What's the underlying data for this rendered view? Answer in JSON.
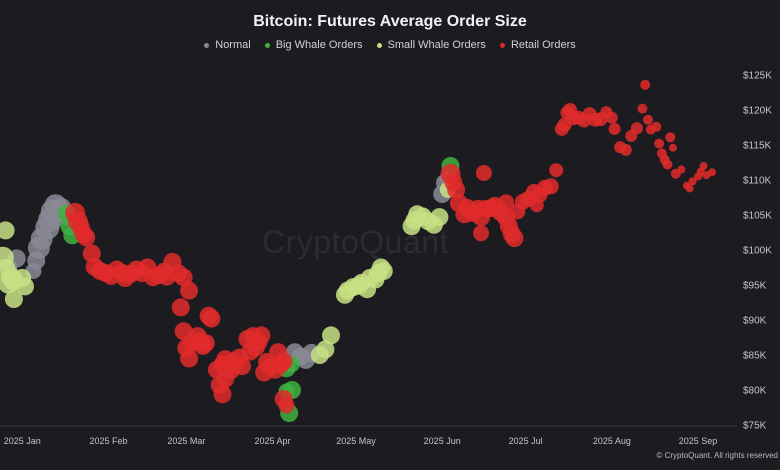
{
  "chart_data": {
    "type": "scatter",
    "title": "Bitcoin: Futures Average Order Size",
    "watermark": "CryptoQuant",
    "footer": "© CryptoQuant. All rights reserved",
    "x_ticks": [
      "2025 Jan",
      "2025 Feb",
      "2025 Mar",
      "2025 Apr",
      "2025 May",
      "2025 Jun",
      "2025 Jul",
      "2025 Aug",
      "2025 Sep"
    ],
    "y_ticks": [
      "$75K",
      "$80K",
      "$85K",
      "$90K",
      "$95K",
      "$100K",
      "$105K",
      "$110K",
      "$115K",
      "$120K",
      "$125K"
    ],
    "ylim": [
      75000,
      125000
    ],
    "xlim": [
      "2024-12-24",
      "2025-09-15"
    ],
    "grid": false,
    "legend_position": "top-center",
    "series": [
      {
        "name": "Normal",
        "color": "#8a8a96",
        "points": [
          [
            "2024-12-27",
            97500,
            9
          ],
          [
            "2024-12-30",
            98800,
            9
          ],
          [
            "2025-01-07",
            100300,
            11
          ],
          [
            "2025-01-08",
            101600,
            11
          ],
          [
            "2025-01-10",
            103200,
            12
          ],
          [
            "2025-01-11",
            104300,
            12
          ],
          [
            "2025-01-12",
            105500,
            12
          ],
          [
            "2025-01-13",
            106400,
            11
          ],
          [
            "2025-01-15",
            106000,
            10
          ],
          [
            "2025-01-17",
            105000,
            10
          ],
          [
            "2025-01-06",
            98500,
            9
          ],
          [
            "2025-01-05",
            97000,
            8
          ],
          [
            "2025-04-09",
            85400,
            9
          ],
          [
            "2025-04-11",
            84800,
            9
          ],
          [
            "2025-04-13",
            84300,
            9
          ],
          [
            "2025-04-15",
            85300,
            9
          ],
          [
            "2025-06-01",
            108000,
            9
          ],
          [
            "2025-06-02",
            109600,
            9
          ],
          [
            "2025-06-03",
            110200,
            8
          ]
        ]
      },
      {
        "name": "Big Whale Orders",
        "color": "#3fb23f",
        "points": [
          [
            "2025-01-17",
            105200,
            9
          ],
          [
            "2025-01-19",
            102100,
            9
          ],
          [
            "2025-01-18",
            103400,
            9
          ],
          [
            "2025-04-06",
            83100,
            9
          ],
          [
            "2025-04-06",
            79800,
            8
          ],
          [
            "2025-04-08",
            80000,
            9
          ],
          [
            "2025-04-08",
            83700,
            8
          ],
          [
            "2025-04-07",
            76700,
            9
          ],
          [
            "2025-06-04",
            112000,
            9
          ]
        ]
      },
      {
        "name": "Small Whale Orders",
        "color": "#c7e085",
        "points": [
          [
            "2024-12-25",
            98900,
            11
          ],
          [
            "2024-12-26",
            97300,
            10
          ],
          [
            "2024-12-27",
            95200,
            10
          ],
          [
            "2024-12-28",
            96100,
            10
          ],
          [
            "2024-12-29",
            95600,
            10
          ],
          [
            "2024-12-26",
            102800,
            9
          ],
          [
            "2024-12-29",
            93000,
            9
          ],
          [
            "2025-01-01",
            96000,
            9
          ],
          [
            "2025-01-02",
            94800,
            9
          ],
          [
            "2025-04-18",
            85000,
            9
          ],
          [
            "2025-04-20",
            85800,
            9
          ],
          [
            "2025-04-22",
            87800,
            9
          ],
          [
            "2025-04-27",
            93600,
            9
          ],
          [
            "2025-04-28",
            94200,
            9
          ],
          [
            "2025-04-30",
            94700,
            9
          ],
          [
            "2025-05-02",
            94900,
            9
          ],
          [
            "2025-05-03",
            95300,
            9
          ],
          [
            "2025-05-05",
            94400,
            9
          ],
          [
            "2025-05-06",
            96000,
            9
          ],
          [
            "2025-05-08",
            95800,
            9
          ],
          [
            "2025-05-09",
            96700,
            9
          ],
          [
            "2025-05-10",
            97500,
            9
          ],
          [
            "2025-05-11",
            97000,
            9
          ],
          [
            "2025-05-21",
            103400,
            9
          ],
          [
            "2025-05-22",
            104200,
            9
          ],
          [
            "2025-05-23",
            105100,
            9
          ],
          [
            "2025-05-25",
            104800,
            9
          ],
          [
            "2025-05-27",
            104100,
            9
          ],
          [
            "2025-05-29",
            103600,
            9
          ],
          [
            "2025-05-31",
            104700,
            9
          ],
          [
            "2025-06-03",
            108600,
            8
          ]
        ]
      },
      {
        "name": "Retail Orders",
        "color": "#e22a2a",
        "points": [
          [
            "2025-01-20",
            105300,
            10
          ],
          [
            "2025-01-21",
            104100,
            10
          ],
          [
            "2025-01-22",
            103300,
            9
          ],
          [
            "2025-01-23",
            102300,
            9
          ],
          [
            "2025-01-24",
            101800,
            9
          ],
          [
            "2025-01-26",
            99500,
            9
          ],
          [
            "2025-01-27",
            97600,
            9
          ],
          [
            "2025-01-29",
            97000,
            9
          ],
          [
            "2025-01-31",
            96700,
            9
          ],
          [
            "2025-02-02",
            96300,
            9
          ],
          [
            "2025-02-04",
            97200,
            9
          ],
          [
            "2025-02-06",
            96700,
            9
          ],
          [
            "2025-02-07",
            96000,
            9
          ],
          [
            "2025-02-09",
            96600,
            9
          ],
          [
            "2025-02-11",
            97200,
            9
          ],
          [
            "2025-02-13",
            96700,
            9
          ],
          [
            "2025-02-15",
            97500,
            9
          ],
          [
            "2025-02-17",
            96100,
            9
          ],
          [
            "2025-02-19",
            96400,
            9
          ],
          [
            "2025-02-21",
            96900,
            9
          ],
          [
            "2025-02-22",
            96200,
            9
          ],
          [
            "2025-02-24",
            98300,
            9
          ],
          [
            "2025-02-26",
            96700,
            9
          ],
          [
            "2025-02-28",
            96100,
            9
          ],
          [
            "2025-03-02",
            94200,
            9
          ],
          [
            "2025-02-27",
            91800,
            9
          ],
          [
            "2025-02-28",
            88400,
            9
          ],
          [
            "2025-03-01",
            86000,
            9
          ],
          [
            "2025-03-02",
            84500,
            9
          ],
          [
            "2025-03-03",
            86800,
            9
          ],
          [
            "2025-03-05",
            87700,
            9
          ],
          [
            "2025-03-06",
            86900,
            9
          ],
          [
            "2025-03-07",
            86300,
            9
          ],
          [
            "2025-03-08",
            86700,
            9
          ],
          [
            "2025-03-09",
            90600,
            9
          ],
          [
            "2025-03-10",
            90200,
            9
          ],
          [
            "2025-03-12",
            82900,
            9
          ],
          [
            "2025-03-14",
            83600,
            9
          ],
          [
            "2025-03-15",
            84400,
            9
          ],
          [
            "2025-03-17",
            82800,
            9
          ],
          [
            "2025-03-18",
            84100,
            9
          ],
          [
            "2025-03-20",
            84600,
            9
          ],
          [
            "2025-03-21",
            83400,
            9
          ],
          [
            "2025-03-23",
            87300,
            9
          ],
          [
            "2025-03-25",
            87700,
            9
          ],
          [
            "2025-03-27",
            86900,
            9
          ],
          [
            "2025-03-29",
            82500,
            9
          ],
          [
            "2025-03-30",
            84000,
            9
          ],
          [
            "2025-03-31",
            83300,
            9
          ],
          [
            "2025-04-02",
            82900,
            9
          ],
          [
            "2025-04-04",
            83700,
            9
          ],
          [
            "2025-04-05",
            84100,
            9
          ],
          [
            "2025-03-13",
            80700,
            9
          ],
          [
            "2025-03-14",
            79400,
            9
          ],
          [
            "2025-03-15",
            81600,
            9
          ],
          [
            "2025-03-18",
            83500,
            9
          ],
          [
            "2025-03-26",
            86100,
            9
          ],
          [
            "2025-03-24",
            85500,
            9
          ],
          [
            "2025-03-28",
            87800,
            9
          ],
          [
            "2025-04-03",
            85400,
            9
          ],
          [
            "2025-04-05",
            78700,
            9
          ],
          [
            "2025-04-06",
            77800,
            8
          ],
          [
            "2025-06-04",
            110900,
            10
          ],
          [
            "2025-06-05",
            109700,
            9
          ],
          [
            "2025-06-06",
            108600,
            9
          ],
          [
            "2025-06-07",
            106700,
            9
          ],
          [
            "2025-06-09",
            105100,
            9
          ],
          [
            "2025-06-10",
            106000,
            9
          ],
          [
            "2025-06-12",
            105300,
            9
          ],
          [
            "2025-06-14",
            105900,
            9
          ],
          [
            "2025-06-15",
            104700,
            9
          ],
          [
            "2025-06-17",
            105900,
            9
          ],
          [
            "2025-06-19",
            106000,
            9
          ],
          [
            "2025-06-20",
            106300,
            9
          ],
          [
            "2025-06-22",
            105400,
            9
          ],
          [
            "2025-06-24",
            104600,
            9
          ],
          [
            "2025-06-25",
            103400,
            9
          ],
          [
            "2025-06-26",
            102300,
            9
          ],
          [
            "2025-06-27",
            101700,
            9
          ],
          [
            "2025-06-24",
            106800,
            8
          ],
          [
            "2025-06-28",
            105500,
            8
          ],
          [
            "2025-06-30",
            106900,
            8
          ],
          [
            "2025-06-16",
            111000,
            8
          ],
          [
            "2025-06-15",
            102400,
            8
          ],
          [
            "2025-07-02",
            107300,
            8
          ],
          [
            "2025-07-04",
            108300,
            8
          ],
          [
            "2025-07-06",
            107900,
            8
          ],
          [
            "2025-07-08",
            108900,
            8
          ],
          [
            "2025-07-10",
            109100,
            8
          ],
          [
            "2025-07-05",
            106400,
            7
          ],
          [
            "2025-07-12",
            111400,
            7
          ],
          [
            "2025-07-14",
            117300,
            7
          ],
          [
            "2025-07-15",
            117900,
            7
          ],
          [
            "2025-07-16",
            119600,
            7
          ],
          [
            "2025-07-17",
            120000,
            7
          ],
          [
            "2025-07-18",
            118800,
            7
          ],
          [
            "2025-07-20",
            118900,
            7
          ],
          [
            "2025-07-22",
            118500,
            7
          ],
          [
            "2025-07-24",
            119400,
            7
          ],
          [
            "2025-07-26",
            118600,
            7
          ],
          [
            "2025-07-28",
            118700,
            7
          ],
          [
            "2025-07-30",
            119700,
            6
          ],
          [
            "2025-08-01",
            118900,
            6
          ],
          [
            "2025-08-02",
            117300,
            6
          ],
          [
            "2025-08-04",
            114700,
            6
          ],
          [
            "2025-08-06",
            114300,
            6
          ],
          [
            "2025-08-08",
            116300,
            6
          ],
          [
            "2025-08-10",
            117400,
            6
          ],
          [
            "2025-08-12",
            120200,
            5
          ],
          [
            "2025-08-13",
            123600,
            5
          ],
          [
            "2025-08-14",
            118600,
            5
          ],
          [
            "2025-08-15",
            117200,
            5
          ],
          [
            "2025-08-17",
            117600,
            5
          ],
          [
            "2025-08-18",
            115200,
            5
          ],
          [
            "2025-08-19",
            113800,
            5
          ],
          [
            "2025-08-20",
            112900,
            5
          ],
          [
            "2025-08-21",
            112200,
            5
          ],
          [
            "2025-08-22",
            116100,
            5
          ],
          [
            "2025-08-24",
            110900,
            5
          ],
          [
            "2025-08-26",
            111500,
            4
          ],
          [
            "2025-08-28",
            109200,
            4
          ],
          [
            "2025-08-30",
            109800,
            4
          ],
          [
            "2025-09-01",
            110500,
            4
          ],
          [
            "2025-09-02",
            111200,
            4
          ],
          [
            "2025-09-04",
            110700,
            4
          ],
          [
            "2025-09-06",
            111100,
            4
          ],
          [
            "2025-09-03",
            112000,
            4
          ],
          [
            "2025-08-29",
            108800,
            4
          ],
          [
            "2025-08-23",
            114600,
            4
          ]
        ]
      }
    ]
  }
}
